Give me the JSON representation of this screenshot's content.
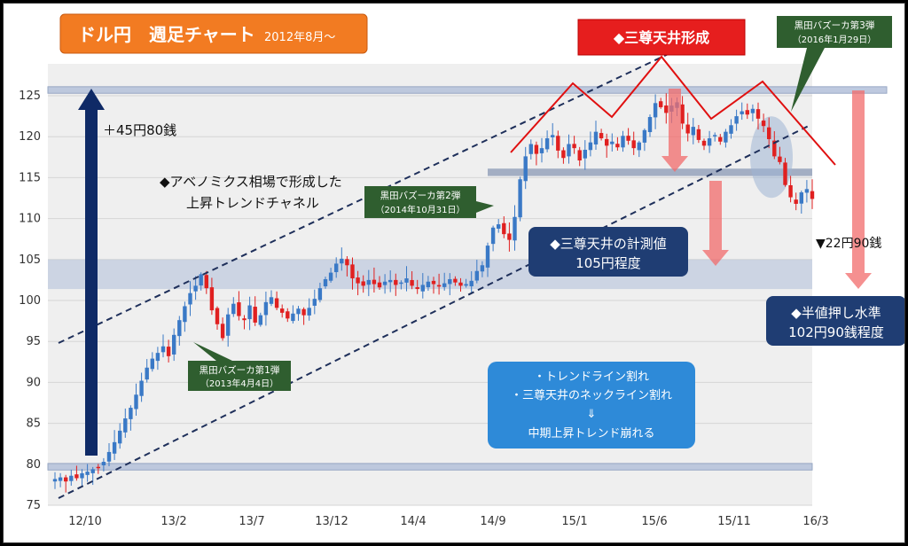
{
  "title": "ドル円　週足チャート",
  "subtitle": "2012年8月～",
  "colors": {
    "up": "#3a79c6",
    "down": "#e02020",
    "title_box": "#f27b22",
    "warning_box": "#e61e1e",
    "navy_box": "#1f3d73",
    "blue_box": "#2e8ad8",
    "green_callout": "#2f5e2f",
    "arrow_dark": "#0f2a66",
    "arrow_pink": "#f26b6b",
    "trend_red": "#e01010",
    "band": "#b8c4dc"
  },
  "chart_data": {
    "type": "candlestick",
    "ylim": [
      75,
      127
    ],
    "yticks": [
      75,
      80,
      85,
      90,
      95,
      100,
      105,
      110,
      115,
      120,
      125
    ],
    "xticks": [
      "12/10",
      "13/2",
      "13/7",
      "13/12",
      "14/4",
      "14/9",
      "15/1",
      "15/6",
      "15/11",
      "16/3"
    ],
    "close_path": [
      78.2,
      78.4,
      77.9,
      78.6,
      78.3,
      78.9,
      79.1,
      79.4,
      79.6,
      80.3,
      81.5,
      82.7,
      84.1,
      85.6,
      86.9,
      88.5,
      90.2,
      91.8,
      92.9,
      93.6,
      94.4,
      93.2,
      95.8,
      97.6,
      99.3,
      100.9,
      101.8,
      103.2,
      101.5,
      98.8,
      97.1,
      95.4,
      98.3,
      99.6,
      98.1,
      97.6,
      99.4,
      97.3,
      98.2,
      99.8,
      100.4,
      99.1,
      98.5,
      97.8,
      98.4,
      99.0,
      98.2,
      99.1,
      100.2,
      101.5,
      102.6,
      103.4,
      104.5,
      105.1,
      104.3,
      102.7,
      102.1,
      101.8,
      102.5,
      102.0,
      101.6,
      102.3,
      102.5,
      101.9,
      102.2,
      102.7,
      101.8,
      101.4,
      101.9,
      102.3,
      102.0,
      101.7,
      102.1,
      102.6,
      102.2,
      101.8,
      102.0,
      102.4,
      103.6,
      104.3,
      106.7,
      108.9,
      109.3,
      108.1,
      107.4,
      110.2,
      114.8,
      117.6,
      119.1,
      117.9,
      118.6,
      119.8,
      120.2,
      118.3,
      117.4,
      119.1,
      118.6,
      117.1,
      118.4,
      119.3,
      120.6,
      119.8,
      118.9,
      119.4,
      118.7,
      120.1,
      119.5,
      118.6,
      119.3,
      120.8,
      122.4,
      124.1,
      123.6,
      122.9,
      123.8,
      124.2,
      121.6,
      120.4,
      121.2,
      119.6,
      118.9,
      119.8,
      120.2,
      119.4,
      120.6,
      121.4,
      122.5,
      123.1,
      122.7,
      123.4,
      122.2,
      121.3,
      119.7,
      117.6,
      116.9,
      114.1,
      112.6,
      111.8,
      113.2,
      113.6,
      112.4
    ]
  },
  "annotations": {
    "top_formation": "◆三尊天井形成",
    "kuroda3_line1": "黒田バズーカ第3弾",
    "kuroda3_line2": "（2016年1月29日）",
    "kuroda2_line1": "黒田バズーカ第2弾",
    "kuroda2_line2": "（2014年10月31日）",
    "kuroda1_line1": "黒田バズーカ第1弾",
    "kuroda1_line2": "（2013年4月4日）",
    "gain": "＋45円80銭",
    "channel_line1": "◆アベノミクス相場で形成した",
    "channel_line2": "上昇トレンドチャネル",
    "measure_line1": "◆三尊天井の計測値",
    "measure_line2": "105円程度",
    "drop": "▼22円90銭",
    "half_line1": "◆半値押し水準",
    "half_line2": "102円90銭程度",
    "break_line1": "・トレンドライン割れ",
    "break_line2": "・三尊天井のネックライン割れ",
    "break_line3": "⇓",
    "break_line4": "中期上昇トレンド崩れる"
  }
}
